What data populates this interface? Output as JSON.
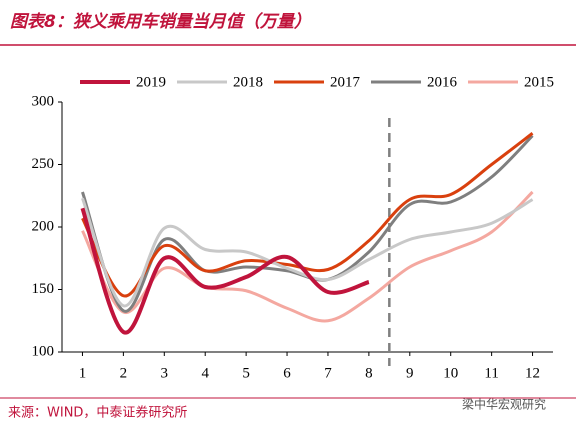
{
  "chart_data": {
    "type": "line",
    "title": "图表8：狭义乘用车销量当月值（万量）",
    "source": "来源：WIND，中泰证券研究所",
    "watermark": "梁中华宏观研究",
    "x": [
      1,
      2,
      3,
      4,
      5,
      6,
      7,
      8,
      9,
      10,
      11,
      12
    ],
    "xlim": [
      0.5,
      12.5
    ],
    "ylim": [
      100,
      300
    ],
    "yticks": [
      100,
      150,
      200,
      250,
      300
    ],
    "reference_x": 8.5,
    "series": [
      {
        "name": "2019",
        "color": "#c0143c",
        "values": [
          215,
          116,
          175,
          152,
          160,
          176,
          148,
          156,
          null,
          null,
          null,
          null
        ]
      },
      {
        "name": "2018",
        "color": "#c8c8c8",
        "values": [
          223,
          137,
          199,
          182,
          180,
          167,
          158,
          174,
          190,
          196,
          203,
          222
        ]
      },
      {
        "name": "2017",
        "color": "#d9400e",
        "values": [
          207,
          145,
          185,
          165,
          173,
          170,
          166,
          189,
          222,
          226,
          250,
          275
        ]
      },
      {
        "name": "2016",
        "color": "#7f7f7f",
        "values": [
          228,
          133,
          190,
          165,
          168,
          165,
          158,
          180,
          218,
          220,
          240,
          273
        ]
      },
      {
        "name": "2015",
        "color": "#f4a8a0",
        "values": [
          197,
          132,
          167,
          152,
          149,
          135,
          125,
          143,
          168,
          181,
          196,
          228
        ]
      }
    ]
  }
}
